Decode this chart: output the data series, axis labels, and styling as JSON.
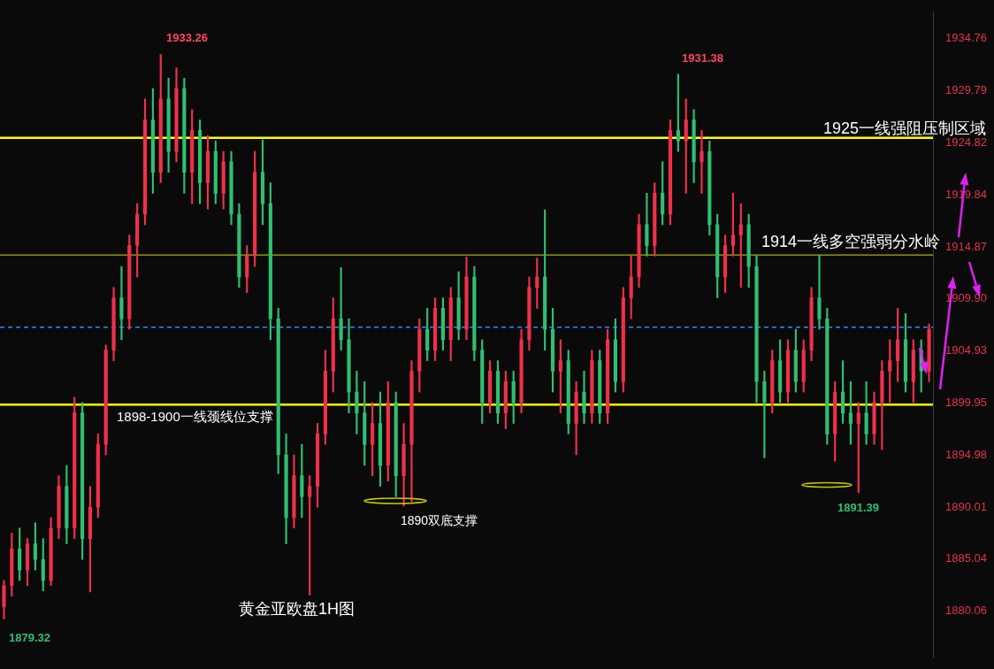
{
  "chart_data": {
    "type": "candlestick",
    "categories": [
      null,
      null,
      null,
      null,
      null,
      null,
      null,
      null,
      null,
      null,
      null,
      null,
      null,
      null,
      null,
      null,
      null,
      null,
      null,
      null,
      null,
      null,
      null,
      null,
      null,
      null,
      null,
      null,
      null,
      null,
      null,
      null,
      null,
      null,
      null,
      null,
      null,
      null,
      null,
      null,
      null,
      null,
      null,
      null,
      null,
      null,
      null,
      null,
      null,
      null,
      null,
      null,
      null,
      null,
      null,
      null,
      null,
      null,
      null,
      null,
      null,
      null,
      null,
      null,
      null,
      null,
      null,
      null,
      null,
      null,
      null,
      null,
      null,
      null,
      null,
      null,
      null,
      null,
      null,
      null,
      null,
      null,
      null,
      null,
      null,
      null,
      null,
      null,
      null,
      null,
      null,
      null,
      null,
      null,
      null,
      null,
      null,
      null,
      null,
      null,
      null,
      null,
      null,
      null,
      null,
      null,
      null,
      null,
      null,
      null,
      null,
      null,
      null,
      null,
      null,
      null,
      null,
      null,
      null
    ],
    "ohlc": [
      [
        1880.5,
        1883,
        1879.32,
        1882.5
      ],
      [
        1882.5,
        1887.5,
        1881.5,
        1886
      ],
      [
        1886,
        1888,
        1883,
        1884
      ],
      [
        1884,
        1887,
        1882.5,
        1886.5
      ],
      [
        1886.5,
        1888.5,
        1884,
        1885
      ],
      [
        1885,
        1887,
        1882,
        1883
      ],
      [
        1883,
        1889,
        1882.5,
        1888
      ],
      [
        1888,
        1893,
        1887,
        1892
      ],
      [
        1892,
        1894,
        1886.5,
        1888
      ],
      [
        1888,
        1900.5,
        1887,
        1899
      ],
      [
        1899,
        1900,
        1885,
        1887
      ],
      [
        1887,
        1892,
        1881.9,
        1890
      ],
      [
        1890,
        1897,
        1889,
        1896
      ],
      [
        1896,
        1905.5,
        1895,
        1905
      ],
      [
        1905,
        1911,
        1904,
        1910
      ],
      [
        1910,
        1913,
        1906,
        1908
      ],
      [
        1908,
        1916,
        1907,
        1915
      ],
      [
        1915,
        1919,
        1912,
        1918
      ],
      [
        1918,
        1929,
        1917,
        1927
      ],
      [
        1927,
        1930,
        1920,
        1922
      ],
      [
        1922,
        1933.26,
        1921,
        1929
      ],
      [
        1929,
        1931,
        1922,
        1924
      ],
      [
        1924,
        1932,
        1923,
        1930
      ],
      [
        1930,
        1931,
        1920,
        1922
      ],
      [
        1922,
        1928,
        1919,
        1926
      ],
      [
        1926,
        1927,
        1919,
        1921
      ],
      [
        1921,
        1925.5,
        1918.5,
        1924
      ],
      [
        1924,
        1925,
        1919,
        1920
      ],
      [
        1920,
        1924,
        1918.5,
        1923
      ],
      [
        1923,
        1924,
        1917,
        1918
      ],
      [
        1918,
        1919,
        1911,
        1912
      ],
      [
        1912,
        1915,
        1910.5,
        1914
      ],
      [
        1914,
        1924,
        1913,
        1922
      ],
      [
        1922,
        1925.1,
        1917,
        1919
      ],
      [
        1919,
        1921,
        1906,
        1908
      ],
      [
        1908,
        1909,
        1893.2,
        1895
      ],
      [
        1895,
        1897,
        1886.5,
        1889
      ],
      [
        1889,
        1895,
        1888,
        1893
      ],
      [
        1893,
        1896,
        1889,
        1891
      ],
      [
        1891,
        1893,
        1881.6,
        1892
      ],
      [
        1892,
        1898,
        1890,
        1897
      ],
      [
        1897,
        1905,
        1896,
        1903
      ],
      [
        1903,
        1910,
        1901,
        1908
      ],
      [
        1908,
        1912.9,
        1905,
        1906
      ],
      [
        1906,
        1908,
        1899,
        1901
      ],
      [
        1901,
        1903,
        1897,
        1899
      ],
      [
        1899,
        1902,
        1894,
        1896
      ],
      [
        1896,
        1900,
        1893,
        1898
      ],
      [
        1898,
        1901,
        1892,
        1894
      ],
      [
        1894,
        1902,
        1892.5,
        1900
      ],
      [
        1900,
        1901,
        1891,
        1893
      ],
      [
        1893,
        1898,
        1890.1,
        1896
      ],
      [
        1896,
        1904,
        1890.5,
        1903
      ],
      [
        1903,
        1908,
        1901,
        1907
      ],
      [
        1907,
        1909,
        1904,
        1905
      ],
      [
        1905,
        1910,
        1904,
        1909
      ],
      [
        1909,
        1910,
        1905,
        1906
      ],
      [
        1906,
        1911,
        1904,
        1910
      ],
      [
        1910,
        1912.5,
        1906,
        1907
      ],
      [
        1907,
        1913.9,
        1906,
        1912
      ],
      [
        1912,
        1913,
        1904,
        1905
      ],
      [
        1905,
        1906,
        1898,
        1900
      ],
      [
        1900,
        1904,
        1899,
        1903
      ],
      [
        1903,
        1904,
        1898,
        1899
      ],
      [
        1899,
        1903,
        1897.5,
        1902
      ],
      [
        1902,
        1903,
        1898,
        1900
      ],
      [
        1900,
        1907,
        1899,
        1906
      ],
      [
        1906,
        1912,
        1905,
        1911
      ],
      [
        1911,
        1913.8,
        1909,
        1912
      ],
      [
        1912,
        1918.4,
        1905,
        1907
      ],
      [
        1907,
        1909,
        1901,
        1903
      ],
      [
        1903,
        1906,
        1899,
        1904
      ],
      [
        1904,
        1905,
        1897,
        1898
      ],
      [
        1898,
        1902,
        1895,
        1901
      ],
      [
        1901,
        1903,
        1898,
        1899
      ],
      [
        1899,
        1905,
        1898,
        1904
      ],
      [
        1904,
        1905,
        1898,
        1899
      ],
      [
        1899,
        1907,
        1898,
        1906
      ],
      [
        1906,
        1908,
        1901,
        1902
      ],
      [
        1902,
        1911,
        1901,
        1910
      ],
      [
        1910,
        1914,
        1908,
        1912
      ],
      [
        1912,
        1918,
        1911,
        1917
      ],
      [
        1917,
        1920,
        1914,
        1915
      ],
      [
        1915,
        1921,
        1914,
        1920
      ],
      [
        1920,
        1923,
        1917,
        1918
      ],
      [
        1918,
        1927,
        1917,
        1926
      ],
      [
        1926,
        1931.38,
        1924,
        1925
      ],
      [
        1925,
        1929,
        1920,
        1927
      ],
      [
        1927,
        1928,
        1921,
        1923
      ],
      [
        1923,
        1926,
        1920,
        1924
      ],
      [
        1924,
        1925,
        1916,
        1917
      ],
      [
        1917,
        1918,
        1910,
        1912
      ],
      [
        1912,
        1916,
        1910.5,
        1915
      ],
      [
        1915,
        1920,
        1914,
        1916
      ],
      [
        1916,
        1919,
        1911,
        1917
      ],
      [
        1917,
        1918,
        1911,
        1913
      ],
      [
        1913,
        1914,
        1900,
        1902
      ],
      [
        1902,
        1903,
        1894.7,
        1900
      ],
      [
        1900,
        1905,
        1899,
        1904
      ],
      [
        1904,
        1906,
        1900,
        1901
      ],
      [
        1901,
        1906,
        1900,
        1905
      ],
      [
        1905,
        1907,
        1901,
        1902
      ],
      [
        1902,
        1906,
        1901,
        1905
      ],
      [
        1905,
        1911,
        1904,
        1910
      ],
      [
        1910,
        1914.1,
        1907,
        1908
      ],
      [
        1908,
        1909,
        1896,
        1897
      ],
      [
        1897,
        1902,
        1894.4,
        1901
      ],
      [
        1901,
        1904,
        1898,
        1899
      ],
      [
        1899,
        1902,
        1896,
        1898
      ],
      [
        1898,
        1900,
        1891.39,
        1899
      ],
      [
        1899,
        1902,
        1896,
        1897
      ],
      [
        1897,
        1901,
        1896,
        1900
      ],
      [
        1900,
        1904,
        1895.5,
        1903
      ],
      [
        1903,
        1906,
        1900,
        1904
      ],
      [
        1904,
        1909,
        1902,
        1906
      ],
      [
        1906,
        1908.5,
        1901,
        1902
      ],
      [
        1902,
        1906,
        1900,
        1905
      ],
      [
        1905,
        1906,
        1901,
        1903
      ],
      [
        1903,
        1907.5,
        1902,
        1907
      ]
    ],
    "ylim": [
      1875.7,
      1937.3
    ],
    "yticks": [
      1880.06,
      1885.04,
      1890.01,
      1894.98,
      {
        "value": 1899.95,
        "label": "1899.95"
      },
      1904.93,
      {
        "value": 1909.9,
        "label": "1909.90"
      },
      1914.87,
      1919.84,
      1924.82,
      1929.79,
      1934.76
    ],
    "tick_labels": "y",
    "grid": false,
    "legend": false,
    "ref_lines": [
      {
        "axis": "y",
        "value": 1925.3,
        "label": "1925一线强阻压制区域",
        "color": "#ffff00",
        "line_style": "solid"
      },
      {
        "axis": "y",
        "value": 1914.1,
        "label": "1914一线多空强弱分水岭",
        "color": "#d8d800",
        "line_style": "solid"
      },
      {
        "axis": "y",
        "value": 1899.8,
        "label": "1898-1900一线颈线位支撑",
        "color": "#ffff00",
        "line_style": "solid"
      },
      {
        "axis": "y",
        "value": 1907.2,
        "color": "#1e90ff",
        "line_style": "dashed"
      }
    ],
    "annotations": [
      "1933.26",
      "1931.38",
      "1891.39",
      "1879.32",
      "1890双底支撑",
      "黄金亚欧盘1H图"
    ]
  }
}
